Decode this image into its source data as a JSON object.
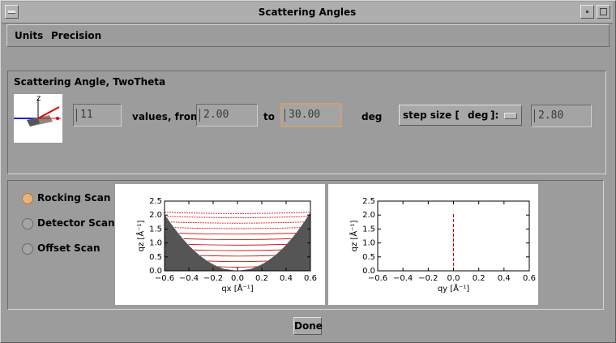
{
  "window": {
    "title": "Scattering Angles"
  },
  "menubar": {
    "items": [
      "Units",
      "Precision"
    ]
  },
  "angle_section": {
    "title": "Scattering Angle, TwoTheta",
    "count_value": "11",
    "values_from_label": "values, from",
    "from_value": "2.00",
    "to_label": "to",
    "to_value": "30.00",
    "unit_label": "deg",
    "step_size_label": "step size [",
    "step_unit": "deg",
    "step_close": "]:",
    "step_value": "2.80"
  },
  "scan_types": {
    "selected": "Rocking Scan",
    "options": [
      "Rocking Scan",
      "Detector Scan",
      "Offset Scan"
    ]
  },
  "done_button": {
    "label": "Done"
  },
  "colors": {
    "shadow_region": "#555555",
    "scan_lines": "#cc0000",
    "selected_radio": "#e8b27c"
  },
  "chart_data": [
    {
      "type": "line",
      "title": "",
      "xlabel": "qx [Å⁻¹]",
      "ylabel": "qz [Å⁻¹]",
      "xlim": [
        -0.6,
        0.6
      ],
      "ylim": [
        0,
        2.5
      ],
      "x_ticks": [
        "−0.6",
        "−0.4",
        "−0.2",
        "0.0",
        "0.2",
        "0.4",
        "0.6"
      ],
      "y_ticks": [
        "0.0",
        "0.5",
        "1.0",
        "1.5",
        "2.0",
        "2.5"
      ],
      "scan_mode": "rocking",
      "qz_levels": [
        0.15,
        0.35,
        0.55,
        0.75,
        0.95,
        1.15,
        1.35,
        1.55,
        1.75,
        1.95,
        2.1
      ],
      "shadow_top_edge": 2.1
    },
    {
      "type": "line",
      "title": "",
      "xlabel": "qy [Å⁻¹]",
      "ylabel": "qz [Å⁻¹]",
      "xlim": [
        -0.6,
        0.6
      ],
      "ylim": [
        0,
        2.5
      ],
      "x_ticks": [
        "−0.6",
        "−0.4",
        "−0.2",
        "0.0",
        "0.2",
        "0.4",
        "0.6"
      ],
      "y_ticks": [
        "0.0",
        "0.5",
        "1.0",
        "1.5",
        "2.0",
        "2.5"
      ],
      "scan_line": {
        "x": [
          0.0,
          0.0
        ],
        "y": [
          0.0,
          2.1
        ]
      }
    }
  ]
}
